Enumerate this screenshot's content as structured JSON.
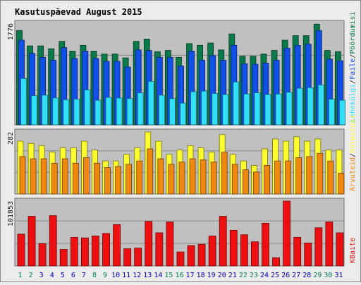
{
  "colors": {
    "background": "#ececec",
    "plot_background": "#c0c0c0",
    "title": "#0000cc",
    "pageviews": "#0b7a4a",
    "hits": "#1050e8",
    "files": "#30e0f8",
    "sites": "#ffff30",
    "visits": "#f08810",
    "kbytes": "#ee1010",
    "day_normal": "#0000cc",
    "day_weekend": "#008060"
  },
  "chart_data": [
    {
      "type": "bar",
      "title": "Kasutuspäevad August 2015",
      "categories": [
        "1",
        "2",
        "3",
        "4",
        "5",
        "6",
        "7",
        "8",
        "9",
        "10",
        "11",
        "12",
        "13",
        "14",
        "15",
        "16",
        "17",
        "18",
        "19",
        "20",
        "21",
        "22",
        "23",
        "24",
        "25",
        "26",
        "27",
        "28",
        "29",
        "30",
        "31"
      ],
      "weekend_days": [
        "1",
        "2",
        "8",
        "9",
        "15",
        "16",
        "22",
        "23",
        "29",
        "30"
      ],
      "ylim": [
        0,
        1776
      ],
      "ytick": "1776",
      "legend_separator": "/",
      "series": [
        {
          "name": "Pöördumisi",
          "values": [
            1650,
            1380,
            1380,
            1330,
            1460,
            1290,
            1390,
            1290,
            1240,
            1240,
            1170,
            1460,
            1500,
            1280,
            1300,
            1180,
            1420,
            1390,
            1430,
            1310,
            1590,
            1200,
            1200,
            1240,
            1300,
            1480,
            1560,
            1560,
            1760,
            1300,
            1280
          ]
        },
        {
          "name": "Faile",
          "values": [
            1480,
            1250,
            1180,
            1130,
            1350,
            1160,
            1290,
            1160,
            1110,
            1110,
            1010,
            1310,
            1300,
            1180,
            1180,
            1030,
            1290,
            1130,
            1210,
            1130,
            1390,
            1070,
            1060,
            1080,
            1130,
            1340,
            1390,
            1410,
            1650,
            1150,
            1120
          ]
        },
        {
          "name": "Lehekülgi",
          "values": [
            810,
            510,
            520,
            470,
            440,
            450,
            610,
            430,
            480,
            470,
            460,
            560,
            760,
            520,
            460,
            380,
            580,
            590,
            550,
            530,
            750,
            540,
            560,
            530,
            540,
            570,
            640,
            650,
            700,
            450,
            430
          ]
        }
      ]
    },
    {
      "type": "bar",
      "categories": [
        "1",
        "2",
        "3",
        "4",
        "5",
        "6",
        "7",
        "8",
        "9",
        "10",
        "11",
        "12",
        "13",
        "14",
        "15",
        "16",
        "17",
        "18",
        "19",
        "20",
        "21",
        "22",
        "23",
        "24",
        "25",
        "26",
        "27",
        "28",
        "29",
        "30",
        "31"
      ],
      "ylim": [
        0,
        282
      ],
      "ytick": "282",
      "legend_separator": "/",
      "series": [
        {
          "name": "Külastusi",
          "values": [
            240,
            230,
            220,
            190,
            210,
            210,
            240,
            200,
            150,
            150,
            180,
            210,
            282,
            240,
            180,
            200,
            220,
            210,
            190,
            270,
            180,
            150,
            130,
            205,
            250,
            240,
            260,
            240,
            250,
            200,
            200
          ]
        },
        {
          "name": "Arvuteid",
          "values": [
            170,
            160,
            160,
            140,
            160,
            140,
            165,
            140,
            120,
            125,
            135,
            150,
            205,
            160,
            135,
            145,
            160,
            155,
            145,
            190,
            135,
            110,
            100,
            130,
            150,
            150,
            165,
            170,
            185,
            150,
            95
          ]
        }
      ]
    },
    {
      "type": "bar",
      "categories": [
        "1",
        "2",
        "3",
        "4",
        "5",
        "6",
        "7",
        "8",
        "9",
        "10",
        "11",
        "12",
        "13",
        "14",
        "15",
        "16",
        "17",
        "18",
        "19",
        "20",
        "21",
        "22",
        "23",
        "24",
        "25",
        "26",
        "27",
        "28",
        "29",
        "30",
        "31"
      ],
      "ylim": [
        0,
        101853
      ],
      "ytick": "101853",
      "series": [
        {
          "name": "KBaite",
          "values": [
            50000,
            78000,
            35000,
            79000,
            26000,
            45000,
            44000,
            47000,
            51000,
            65000,
            27000,
            28000,
            70000,
            52000,
            69000,
            22000,
            32000,
            34000,
            47000,
            78000,
            56000,
            49000,
            38000,
            67000,
            13000,
            101853,
            45000,
            36000,
            60000,
            69000,
            52000
          ]
        }
      ]
    }
  ]
}
